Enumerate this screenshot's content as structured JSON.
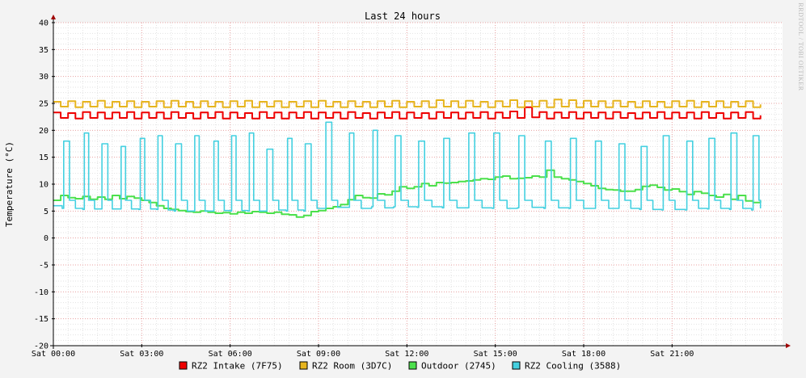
{
  "watermark": "RRDTOOL / TOBI OETIKER",
  "chart_data": {
    "type": "line",
    "title": "Last 24 hours",
    "xlabel": "",
    "ylabel": "Temperature (°C)",
    "ylim": [
      -20,
      40
    ],
    "yticks": [
      40,
      35,
      30,
      25,
      20,
      15,
      10,
      5,
      0,
      -5,
      -10,
      -15,
      -20
    ],
    "xlim": [
      0,
      24.75
    ],
    "xticks": [
      {
        "x": 0,
        "label": "Sat 00:00"
      },
      {
        "x": 3,
        "label": "Sat 03:00"
      },
      {
        "x": 6,
        "label": "Sat 06:00"
      },
      {
        "x": 9,
        "label": "Sat 09:00"
      },
      {
        "x": 12,
        "label": "Sat 12:00"
      },
      {
        "x": 15,
        "label": "Sat 15:00"
      },
      {
        "x": 18,
        "label": "Sat 18:00"
      },
      {
        "x": 21,
        "label": "Sat 21:00"
      }
    ],
    "x_unit": "hours since Sat 00:00",
    "grid": true,
    "legend": "bottom",
    "series": [
      {
        "name": "RZ2 Intake (7F75)",
        "color": "#ee0000",
        "x": [
          0,
          0.25,
          0.5,
          0.75,
          1,
          1.25,
          1.5,
          1.75,
          2,
          2.25,
          2.5,
          2.75,
          3,
          3.25,
          3.5,
          3.75,
          4,
          4.25,
          4.5,
          4.75,
          5,
          5.25,
          5.5,
          5.75,
          6,
          6.25,
          6.5,
          6.75,
          7,
          7.25,
          7.5,
          7.75,
          8,
          8.25,
          8.5,
          8.75,
          9,
          9.25,
          9.5,
          9.75,
          10,
          10.25,
          10.5,
          10.75,
          11,
          11.25,
          11.5,
          11.75,
          12,
          12.25,
          12.5,
          12.75,
          13,
          13.25,
          13.5,
          13.75,
          14,
          14.25,
          14.5,
          14.75,
          15,
          15.25,
          15.5,
          15.75,
          16,
          16.25,
          16.5,
          16.75,
          17,
          17.25,
          17.5,
          17.75,
          18,
          18.25,
          18.5,
          18.75,
          19,
          19.25,
          19.5,
          19.75,
          20,
          20.25,
          20.5,
          20.75,
          21,
          21.25,
          21.5,
          21.75,
          22,
          22.25,
          22.5,
          22.75,
          23,
          23.25,
          23.5,
          23.75,
          24
        ],
        "values": [
          23.3,
          22.3,
          23.2,
          22.2,
          23.4,
          22.3,
          23.3,
          22.2,
          23.3,
          22.3,
          23.4,
          22.2,
          23.3,
          22.3,
          23.3,
          22.2,
          23.4,
          22.3,
          23.2,
          22.2,
          23.3,
          22.3,
          23.4,
          22.2,
          23.3,
          22.3,
          23.2,
          22.2,
          23.4,
          22.3,
          23.3,
          22.2,
          23.3,
          22.3,
          23.4,
          22.2,
          23.3,
          22.3,
          23.3,
          22.2,
          23.4,
          22.3,
          23.2,
          22.2,
          23.3,
          22.3,
          23.4,
          22.2,
          23.3,
          22.3,
          23.2,
          22.2,
          23.4,
          22.3,
          23.3,
          22.2,
          23.3,
          22.3,
          23.4,
          22.2,
          23.3,
          22.3,
          23.5,
          22.3,
          24.3,
          22.4,
          23.4,
          22.2,
          23.3,
          22.3,
          23.4,
          22.2,
          23.3,
          22.3,
          23.3,
          22.2,
          23.4,
          22.3,
          23.2,
          22.2,
          23.3,
          22.3,
          23.4,
          22.2,
          23.3,
          22.3,
          23.3,
          22.2,
          23.4,
          22.3,
          23.2,
          22.2,
          23.3,
          22.3,
          23.4,
          22.2,
          22.8
        ]
      },
      {
        "name": "RZ2 Room (3D7C)",
        "color": "#e6b41e",
        "x": [
          0,
          0.25,
          0.5,
          0.75,
          1,
          1.25,
          1.5,
          1.75,
          2,
          2.25,
          2.5,
          2.75,
          3,
          3.25,
          3.5,
          3.75,
          4,
          4.25,
          4.5,
          4.75,
          5,
          5.25,
          5.5,
          5.75,
          6,
          6.25,
          6.5,
          6.75,
          7,
          7.25,
          7.5,
          7.75,
          8,
          8.25,
          8.5,
          8.75,
          9,
          9.25,
          9.5,
          9.75,
          10,
          10.25,
          10.5,
          10.75,
          11,
          11.25,
          11.5,
          11.75,
          12,
          12.25,
          12.5,
          12.75,
          13,
          13.25,
          13.5,
          13.75,
          14,
          14.25,
          14.5,
          14.75,
          15,
          15.25,
          15.5,
          15.75,
          16,
          16.25,
          16.5,
          16.75,
          17,
          17.25,
          17.5,
          17.75,
          18,
          18.25,
          18.5,
          18.75,
          19,
          19.25,
          19.5,
          19.75,
          20,
          20.25,
          20.5,
          20.75,
          21,
          21.25,
          21.5,
          21.75,
          22,
          22.25,
          22.5,
          22.75,
          23,
          23.25,
          23.5,
          23.75,
          24
        ],
        "values": [
          25.3,
          24.4,
          25.4,
          24.3,
          25.3,
          24.4,
          25.5,
          24.3,
          25.3,
          24.4,
          25.4,
          24.3,
          25.3,
          24.4,
          25.4,
          24.3,
          25.5,
          24.4,
          25.3,
          24.3,
          25.4,
          24.4,
          25.3,
          24.3,
          25.4,
          24.4,
          25.5,
          24.3,
          25.3,
          24.4,
          25.4,
          24.3,
          25.3,
          24.4,
          25.4,
          24.3,
          25.5,
          24.4,
          25.3,
          24.3,
          25.4,
          24.4,
          25.3,
          24.3,
          25.4,
          24.4,
          25.5,
          24.3,
          25.3,
          24.4,
          25.4,
          24.3,
          25.6,
          24.4,
          25.4,
          24.3,
          25.5,
          24.4,
          25.3,
          24.3,
          25.4,
          24.4,
          25.6,
          24.3,
          25.4,
          24.4,
          25.5,
          24.3,
          25.7,
          24.4,
          25.6,
          24.3,
          25.5,
          24.4,
          25.4,
          24.3,
          25.5,
          24.4,
          25.3,
          24.3,
          25.4,
          24.4,
          25.3,
          24.3,
          25.4,
          24.4,
          25.5,
          24.3,
          25.3,
          24.4,
          25.4,
          24.3,
          25.3,
          24.4,
          25.4,
          24.3,
          24.8
        ]
      },
      {
        "name": "Outdoor (2745)",
        "color": "#4ce04c",
        "x": [
          0,
          0.25,
          0.5,
          0.75,
          1,
          1.25,
          1.5,
          1.75,
          2,
          2.25,
          2.5,
          2.75,
          3,
          3.25,
          3.5,
          3.75,
          4,
          4.25,
          4.5,
          4.75,
          5,
          5.25,
          5.5,
          5.75,
          6,
          6.25,
          6.5,
          6.75,
          7,
          7.25,
          7.5,
          7.75,
          8,
          8.25,
          8.5,
          8.75,
          9,
          9.25,
          9.5,
          9.75,
          10,
          10.25,
          10.5,
          10.75,
          11,
          11.25,
          11.5,
          11.75,
          12,
          12.25,
          12.5,
          12.75,
          13,
          13.25,
          13.5,
          13.75,
          14,
          14.25,
          14.5,
          14.75,
          15,
          15.25,
          15.5,
          15.75,
          16,
          16.25,
          16.5,
          16.75,
          17,
          17.25,
          17.5,
          17.75,
          18,
          18.25,
          18.5,
          18.75,
          19,
          19.25,
          19.5,
          19.75,
          20,
          20.25,
          20.5,
          20.75,
          21,
          21.25,
          21.5,
          21.75,
          22,
          22.25,
          22.5,
          22.75,
          23,
          23.25,
          23.5,
          23.75,
          24
        ],
        "values": [
          7.0,
          7.9,
          7.5,
          7.3,
          7.7,
          7.2,
          7.6,
          7.2,
          7.9,
          7.3,
          7.7,
          7.4,
          7.0,
          6.6,
          6.0,
          5.5,
          5.3,
          5.1,
          4.9,
          4.8,
          5.0,
          4.8,
          4.6,
          4.7,
          4.5,
          4.8,
          4.6,
          4.9,
          4.8,
          4.6,
          4.8,
          4.4,
          4.3,
          3.9,
          4.2,
          4.9,
          5.1,
          5.5,
          5.8,
          6.2,
          7.1,
          7.9,
          7.5,
          7.4,
          8.2,
          8.0,
          8.7,
          9.5,
          9.2,
          9.5,
          10.1,
          9.7,
          10.3,
          10.2,
          10.3,
          10.5,
          10.6,
          10.8,
          11.0,
          10.9,
          11.3,
          11.5,
          11.0,
          11.1,
          11.2,
          11.5,
          11.3,
          12.6,
          11.3,
          11.0,
          10.8,
          10.5,
          10.1,
          9.7,
          9.2,
          9.0,
          8.9,
          8.7,
          8.7,
          9.0,
          9.6,
          9.8,
          9.4,
          8.9,
          9.1,
          8.6,
          8.1,
          8.6,
          8.3,
          7.9,
          7.6,
          8.1,
          7.2,
          7.9,
          6.9,
          6.6,
          6.9
        ]
      },
      {
        "name": "RZ2 Cooling (3588)",
        "color": "#44d0e0",
        "x": [
          0,
          0.3,
          0.35,
          0.55,
          0.75,
          1.0,
          1.05,
          1.2,
          1.4,
          1.6,
          1.65,
          1.85,
          2.0,
          2.25,
          2.3,
          2.45,
          2.65,
          2.9,
          2.95,
          3.1,
          3.3,
          3.5,
          3.55,
          3.7,
          3.9,
          4.1,
          4.15,
          4.35,
          4.55,
          4.75,
          4.8,
          4.95,
          5.15,
          5.4,
          5.45,
          5.6,
          5.8,
          6.0,
          6.05,
          6.2,
          6.4,
          6.6,
          6.65,
          6.8,
          7.0,
          7.2,
          7.25,
          7.45,
          7.65,
          7.9,
          7.95,
          8.1,
          8.3,
          8.5,
          8.55,
          8.75,
          8.95,
          9.2,
          9.25,
          9.45,
          9.65,
          10.0,
          10.05,
          10.2,
          10.45,
          10.8,
          10.85,
          11.0,
          11.25,
          11.55,
          11.6,
          11.8,
          12.05,
          12.35,
          12.4,
          12.6,
          12.85,
          13.2,
          13.25,
          13.45,
          13.7,
          14.05,
          14.1,
          14.3,
          14.55,
          14.9,
          14.95,
          15.15,
          15.4,
          15.75,
          15.8,
          16.0,
          16.25,
          16.65,
          16.7,
          16.9,
          17.15,
          17.5,
          17.55,
          17.75,
          18.0,
          18.35,
          18.4,
          18.6,
          18.85,
          19.15,
          19.2,
          19.4,
          19.6,
          19.9,
          19.95,
          20.15,
          20.35,
          20.65,
          20.7,
          20.9,
          21.1,
          21.45,
          21.5,
          21.7,
          21.9,
          22.2,
          22.25,
          22.45,
          22.65,
          22.95,
          23.0,
          23.2,
          23.4,
          23.7,
          23.75,
          23.95,
          24.0
        ],
        "values": [
          6.0,
          5.5,
          18.0,
          7.0,
          5.5,
          5.3,
          19.5,
          7.0,
          5.4,
          5.4,
          17.5,
          7.0,
          5.4,
          5.4,
          17.0,
          7.0,
          5.4,
          5.3,
          18.5,
          7.0,
          5.4,
          5.3,
          19.0,
          7.0,
          5.2,
          5.0,
          17.5,
          7.0,
          5.0,
          5.0,
          19.0,
          7.0,
          5.0,
          5.0,
          18.0,
          7.0,
          5.1,
          5.0,
          19.0,
          7.0,
          5.1,
          5.0,
          19.5,
          7.0,
          5.0,
          5.0,
          16.5,
          7.0,
          5.2,
          5.0,
          18.5,
          7.0,
          5.2,
          5.0,
          17.5,
          7.0,
          5.5,
          5.5,
          21.5,
          7.0,
          5.7,
          5.7,
          19.5,
          7.0,
          5.5,
          5.8,
          20.0,
          7.0,
          5.6,
          5.8,
          19.0,
          7.0,
          5.8,
          5.7,
          18.0,
          7.0,
          5.8,
          5.6,
          18.5,
          7.0,
          5.6,
          5.6,
          19.5,
          7.0,
          5.6,
          5.5,
          19.5,
          7.0,
          5.5,
          5.6,
          19.0,
          7.0,
          5.7,
          5.5,
          18.0,
          7.0,
          5.6,
          5.5,
          18.5,
          7.0,
          5.5,
          5.5,
          18.0,
          7.0,
          5.5,
          5.5,
          17.5,
          7.0,
          5.5,
          5.3,
          17.0,
          7.0,
          5.3,
          5.2,
          19.0,
          7.0,
          5.3,
          5.2,
          18.0,
          7.0,
          5.5,
          5.4,
          18.5,
          7.0,
          5.5,
          5.3,
          19.5,
          7.0,
          5.5,
          5.2,
          19.0,
          7.0,
          5.5
        ]
      }
    ]
  }
}
